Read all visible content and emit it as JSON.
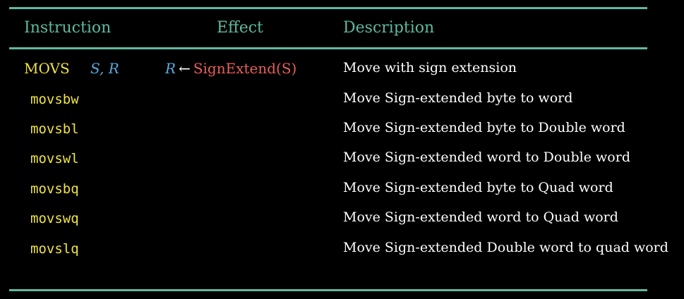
{
  "table": {
    "headers": {
      "instruction": "Instruction",
      "effect": "Effect",
      "description": "Description"
    },
    "general_row": {
      "instruction": "MOVS",
      "operands": "S, R",
      "effect_dest": "R",
      "effect_arrow": "←",
      "effect_expr": "SignExtend(S)",
      "description": "Move with sign extension"
    },
    "rows": [
      {
        "instruction": "movsbw",
        "description": "Move Sign-extended byte to word"
      },
      {
        "instruction": "movsbl",
        "description": "Move Sign-extended byte to Double word"
      },
      {
        "instruction": "movswl",
        "description": "Move Sign-extended word to Double word"
      },
      {
        "instruction": "movsbq",
        "description": "Move Sign-extended byte to Quad word"
      },
      {
        "instruction": "movswq",
        "description": "Move Sign-extended word to Quad word"
      },
      {
        "instruction": "movslq",
        "description": "Move Sign-extended Double word to quad word"
      }
    ]
  },
  "colors": {
    "rule": "#5fb9a0",
    "instruction": "#f0e442",
    "operand": "#5aa9dc",
    "function": "#e8605a",
    "text": "#ffffff",
    "background": "#000000"
  }
}
